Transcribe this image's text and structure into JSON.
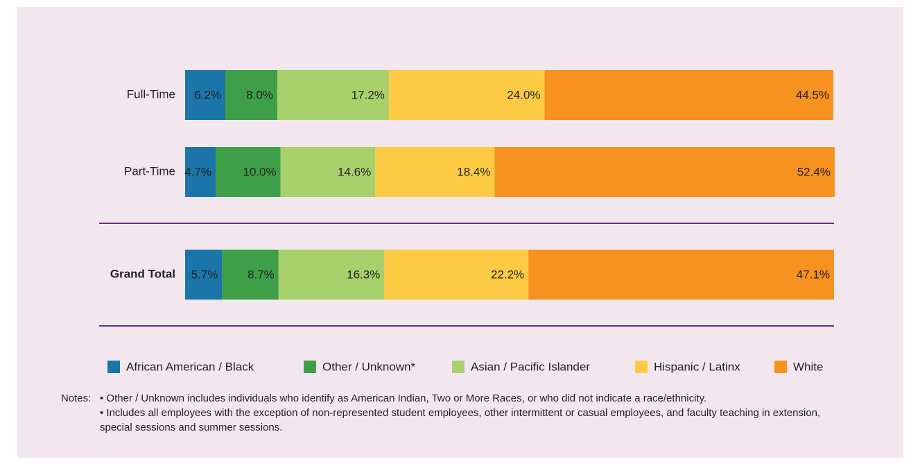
{
  "chart_data": {
    "type": "stacked-bar",
    "orientation": "horizontal",
    "categories": [
      "Full-Time",
      "Part-Time",
      "Grand Total"
    ],
    "series": [
      {
        "name": "African American / Black",
        "color": "#1b75a9",
        "values": [
          6.2,
          4.7,
          5.7
        ],
        "value_labels": [
          "6.2%",
          "4.7%",
          "5.7%"
        ]
      },
      {
        "name": "Other / Unknown*",
        "color": "#3f9e48",
        "values": [
          8.0,
          10.0,
          8.7
        ],
        "value_labels": [
          "8.0%",
          "10.0%",
          "8.7%"
        ]
      },
      {
        "name": "Asian / Pacific Islander",
        "color": "#a8d16b",
        "values": [
          17.2,
          14.6,
          16.3
        ],
        "value_labels": [
          "17.2%",
          "14.6%",
          "16.3%"
        ]
      },
      {
        "name": "Hispanic / Latinx",
        "color": "#fdca44",
        "values": [
          24.0,
          18.4,
          22.2
        ],
        "value_labels": [
          "24.0%",
          "18.4%",
          "22.2%"
        ]
      },
      {
        "name": "White",
        "color": "#f7911f",
        "values": [
          44.5,
          52.4,
          47.1
        ],
        "value_labels": [
          "44.5%",
          "52.4%",
          "47.1%"
        ]
      }
    ],
    "xlim": [
      0,
      100
    ],
    "legend": "bottom",
    "notes_label": "Notes:",
    "notes": [
      "• Other / Unknown includes individuals who identify as American Indian, Two or More Races, or who did not indicate a race/ethnicity.",
      "• Includes all employees with the exception of non-represented student employees, other intermittent or casual employees, and faculty teaching in extension, special sessions and summer sessions."
    ]
  }
}
